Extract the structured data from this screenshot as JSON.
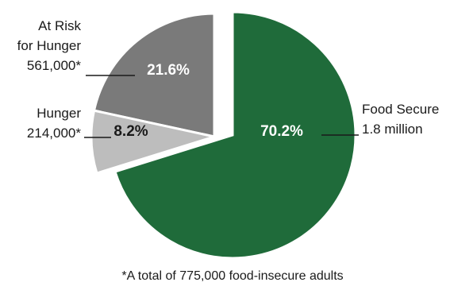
{
  "chart_data": {
    "type": "pie",
    "slices": [
      {
        "label_lines": [
          "Food Secure",
          "1.8 million"
        ],
        "pct_label": "70.2%",
        "value": 70.2,
        "color": "#1f6b3a",
        "exploded": false
      },
      {
        "label_lines": [
          "At Risk",
          "for Hunger",
          "561,000*"
        ],
        "pct_label": "21.6%",
        "value": 21.6,
        "color": "#7a7a7a",
        "exploded": true
      },
      {
        "label_lines": [
          "Hunger",
          "214,000*"
        ],
        "pct_label": "8.2%",
        "value": 8.2,
        "color": "#bdbdbd",
        "exploded": true
      }
    ],
    "footnote": "*A total of 775,000 food-insecure adults"
  }
}
